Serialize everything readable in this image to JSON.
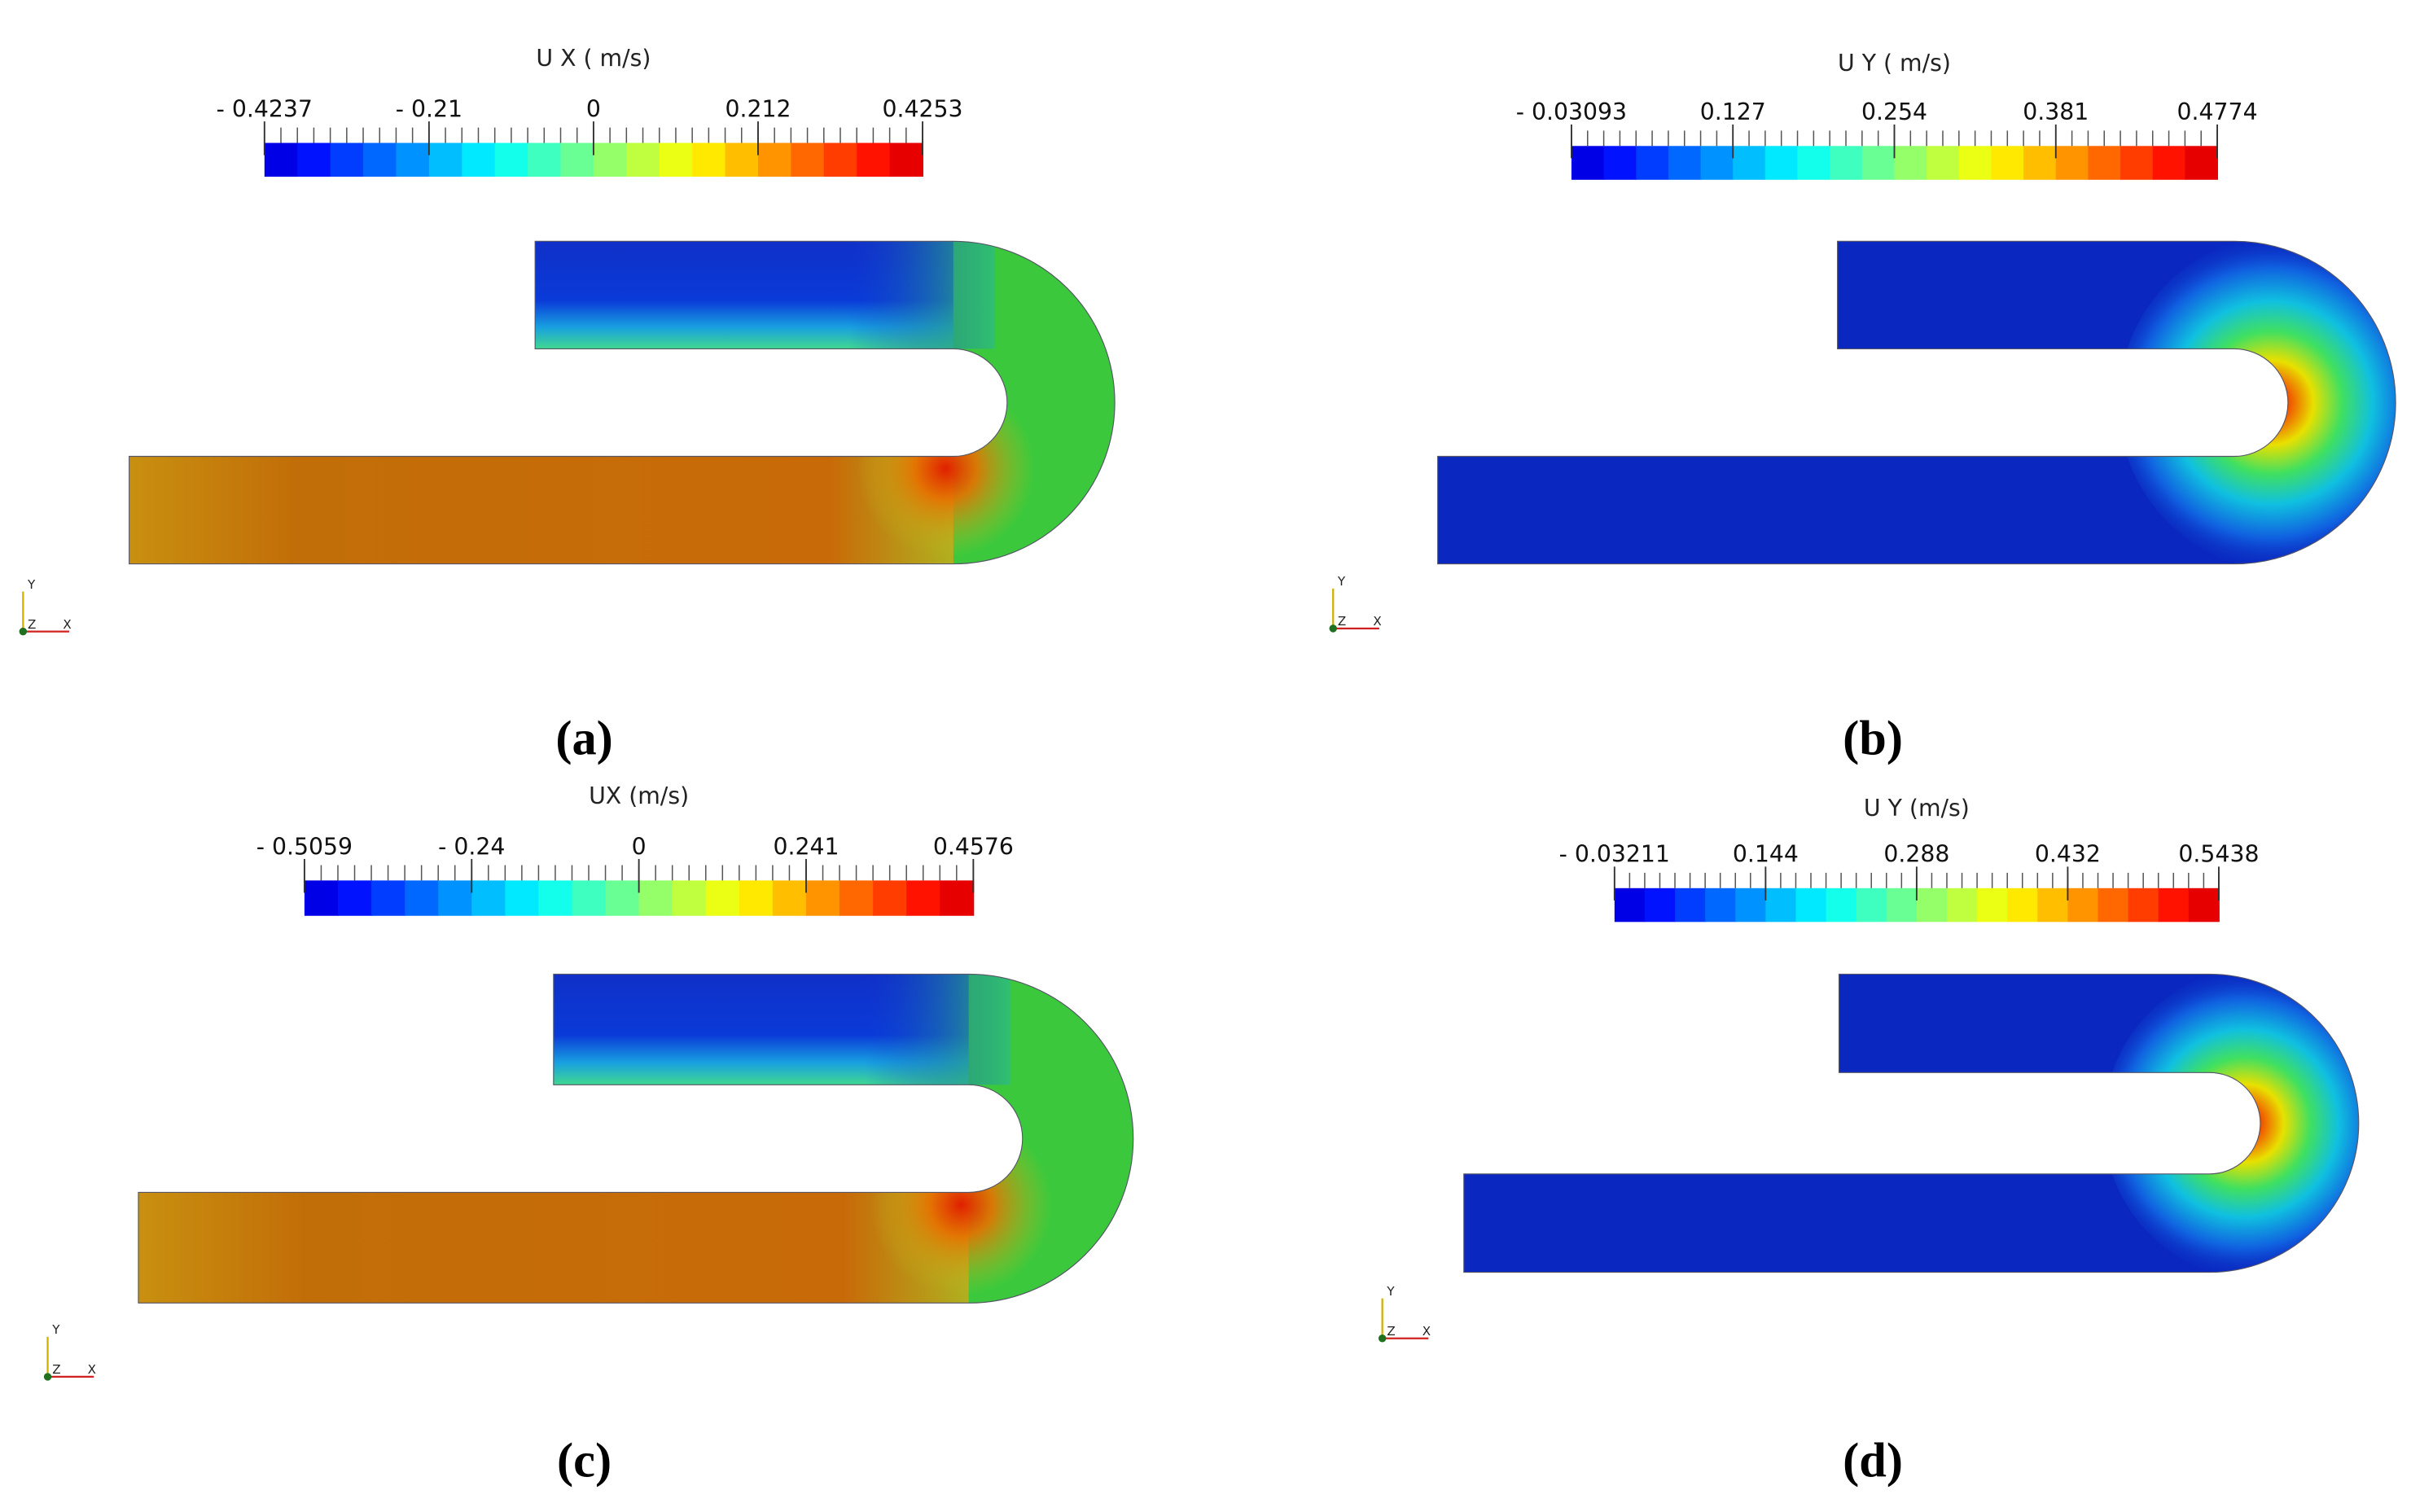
{
  "panels": [
    {
      "caption": "(a)",
      "colorbar": {
        "title": "U X ( m/s)",
        "ticks": [
          "- 0.4237",
          "- 0.21",
          "0",
          "0.212",
          "0.4253"
        ]
      },
      "triad": {
        "y": "Y",
        "z": "Z",
        "x": "X"
      }
    },
    {
      "caption": "(b)",
      "colorbar": {
        "title": "U Y ( m/s)",
        "ticks": [
          "- 0.03093",
          "0.127",
          "0.254",
          "0.381",
          "0.4774"
        ]
      },
      "triad": {
        "y": "Y",
        "z": "Z",
        "x": "X"
      }
    },
    {
      "caption": "(c)",
      "colorbar": {
        "title": "UX (m/s)",
        "ticks": [
          "- 0.5059",
          "- 0.24",
          "0",
          "0.241",
          "0.4576"
        ]
      },
      "triad": {
        "y": "Y",
        "z": "Z",
        "x": "X"
      }
    },
    {
      "caption": "(d)",
      "colorbar": {
        "title": "U Y (m/s)",
        "ticks": [
          "- 0.03211",
          "0.144",
          "0.288",
          "0.432",
          "0.5438"
        ]
      },
      "triad": {
        "y": "Y",
        "z": "Z",
        "x": "X"
      }
    }
  ]
}
